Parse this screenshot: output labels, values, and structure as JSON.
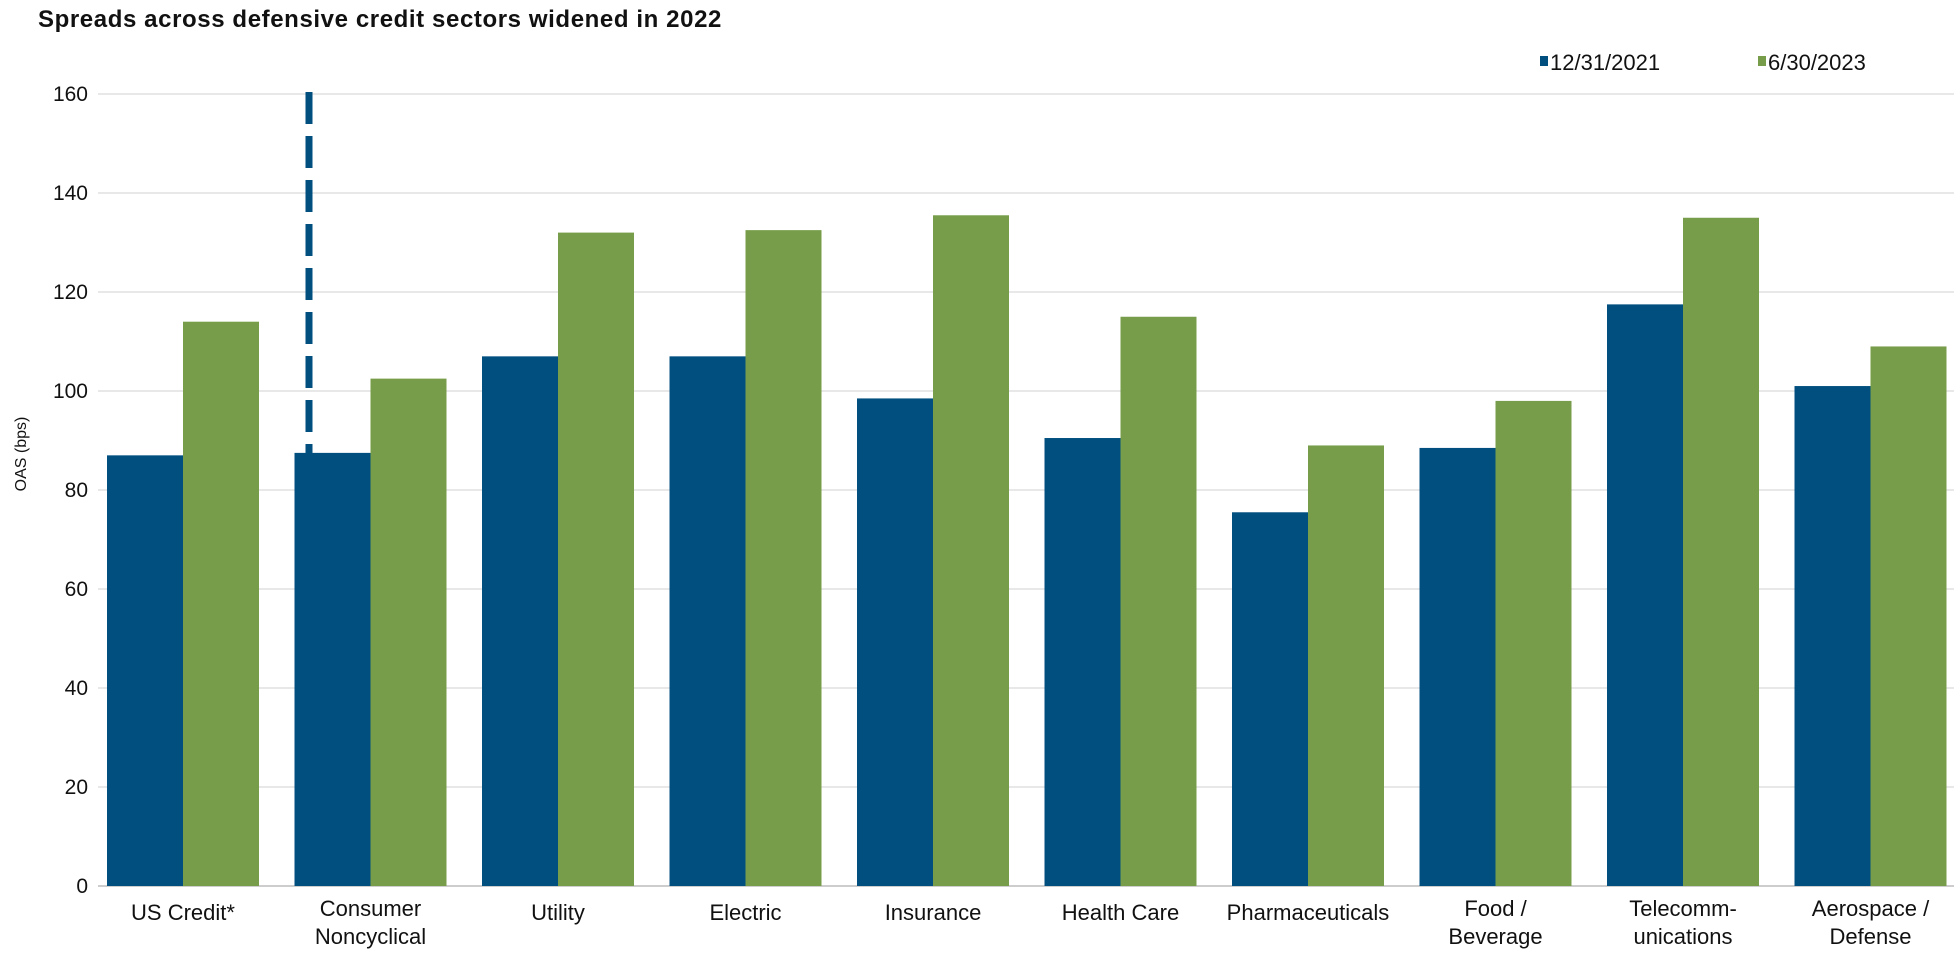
{
  "chart_data": {
    "type": "bar",
    "title": "Spreads across defensive credit sectors widened in 2022",
    "ylabel": "OAS (bps)",
    "xlabel": "",
    "ylim": [
      0,
      160
    ],
    "yticks": [
      0,
      20,
      40,
      60,
      80,
      100,
      120,
      140,
      160
    ],
    "grid": true,
    "legend_position": "top-right",
    "categories": [
      "US Credit*",
      "Consumer Noncyclical",
      "Utility",
      "Electric",
      "Insurance",
      "Health Care",
      "Pharmaceuticals",
      "Food / Beverage",
      "Telecomm- unications",
      "Aerospace / Defense"
    ],
    "category_lines": [
      [
        "US Credit*"
      ],
      [
        "Consumer",
        "Noncyclical"
      ],
      [
        "Utility"
      ],
      [
        "Electric"
      ],
      [
        "Insurance"
      ],
      [
        "Health Care"
      ],
      [
        "Pharmaceuticals"
      ],
      [
        "Food /",
        "Beverage"
      ],
      [
        "Telecomm-",
        "unications"
      ],
      [
        "Aerospace /",
        "Defense"
      ]
    ],
    "series": [
      {
        "name": "12/31/2021",
        "color": "#004f7f",
        "values": [
          87,
          87.5,
          107,
          107,
          98.5,
          90.5,
          75.5,
          88.5,
          117.5,
          101
        ]
      },
      {
        "name": "6/30/2023",
        "color": "#789d4a",
        "values": [
          114,
          102.5,
          132,
          132.5,
          135.5,
          115,
          89,
          98,
          135,
          109
        ]
      }
    ],
    "separator": {
      "style": "dashed",
      "color": "#004f7f",
      "after_category": "US Credit*"
    }
  }
}
